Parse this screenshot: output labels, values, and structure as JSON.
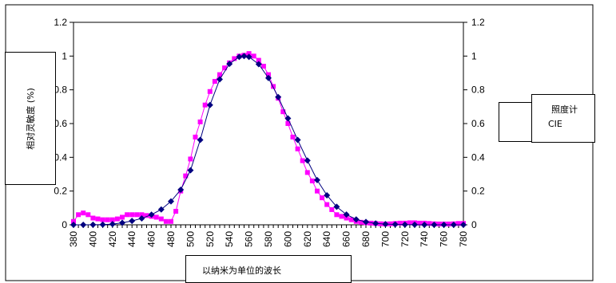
{
  "chart_data": {
    "type": "line",
    "ylabel": "相对灵敏度 (%)",
    "xlabel": "以纳米为单位的波长",
    "xlim": [
      380,
      780
    ],
    "ylim": [
      0,
      1.2
    ],
    "y_ticks": [
      "0",
      "0.2",
      "0.4",
      "0.6",
      "0.8",
      "1",
      "1.2"
    ],
    "y_ticks_right": [
      "0",
      "0.2",
      "0.4",
      "0.6",
      "0.8",
      "1",
      "1.2"
    ],
    "x_ticks": [
      "380",
      "400",
      "420",
      "440",
      "460",
      "480",
      "500",
      "520",
      "540",
      "560",
      "580",
      "600",
      "620",
      "640",
      "660",
      "680",
      "700",
      "720",
      "740",
      "760",
      "780"
    ],
    "legend": {
      "entries": [
        "照度计",
        "CIE"
      ],
      "placement": "right"
    },
    "series": [
      {
        "name": "照度计",
        "color": "#FF00FF",
        "marker": "square",
        "x": [
          380,
          385,
          390,
          395,
          400,
          405,
          410,
          415,
          420,
          425,
          430,
          435,
          440,
          445,
          450,
          455,
          460,
          465,
          470,
          475,
          480,
          485,
          490,
          495,
          500,
          505,
          510,
          515,
          520,
          525,
          530,
          535,
          540,
          545,
          550,
          555,
          560,
          565,
          570,
          575,
          580,
          585,
          590,
          595,
          600,
          605,
          610,
          615,
          620,
          625,
          630,
          635,
          640,
          645,
          650,
          655,
          660,
          665,
          670,
          675,
          680,
          685,
          690,
          695,
          700,
          705,
          710,
          715,
          720,
          725,
          730,
          735,
          740,
          745,
          750,
          755,
          760,
          765,
          770,
          775,
          780
        ],
        "y": [
          0.02,
          0.06,
          0.07,
          0.06,
          0.04,
          0.035,
          0.03,
          0.03,
          0.03,
          0.035,
          0.045,
          0.06,
          0.06,
          0.06,
          0.06,
          0.055,
          0.05,
          0.045,
          0.035,
          0.02,
          0.02,
          0.08,
          0.2,
          0.29,
          0.39,
          0.52,
          0.61,
          0.71,
          0.79,
          0.85,
          0.89,
          0.93,
          0.96,
          0.985,
          1.0,
          1.005,
          1.015,
          1.0,
          0.975,
          0.94,
          0.89,
          0.82,
          0.75,
          0.67,
          0.6,
          0.52,
          0.45,
          0.38,
          0.31,
          0.26,
          0.2,
          0.16,
          0.12,
          0.09,
          0.06,
          0.05,
          0.04,
          0.03,
          0.02,
          0.015,
          0.012,
          0.01,
          0.008,
          0.006,
          0.005,
          0.006,
          0.008,
          0.01,
          0.01,
          0.012,
          0.012,
          0.01,
          0.01,
          0.008,
          0.006,
          0.005,
          0.005,
          0.005,
          0.006,
          0.008,
          0.008
        ]
      },
      {
        "name": "CIE",
        "color": "#000080",
        "marker": "diamond",
        "x": [
          380,
          390,
          400,
          410,
          420,
          430,
          440,
          450,
          460,
          470,
          480,
          490,
          500,
          510,
          520,
          530,
          540,
          550,
          555,
          560,
          570,
          580,
          590,
          600,
          610,
          620,
          630,
          640,
          650,
          660,
          670,
          680,
          690,
          700,
          710,
          720,
          730,
          740,
          750,
          760,
          770,
          780
        ],
        "y": [
          0.0,
          0.0001,
          0.0004,
          0.0012,
          0.004,
          0.0116,
          0.023,
          0.038,
          0.06,
          0.091,
          0.139,
          0.208,
          0.323,
          0.503,
          0.71,
          0.862,
          0.954,
          0.995,
          1.0,
          0.995,
          0.952,
          0.87,
          0.757,
          0.631,
          0.503,
          0.381,
          0.265,
          0.175,
          0.107,
          0.061,
          0.032,
          0.017,
          0.0082,
          0.0041,
          0.0021,
          0.00105,
          0.00052,
          0.00025,
          0.00012,
          6e-05,
          3e-05,
          1.5e-05
        ]
      }
    ]
  }
}
